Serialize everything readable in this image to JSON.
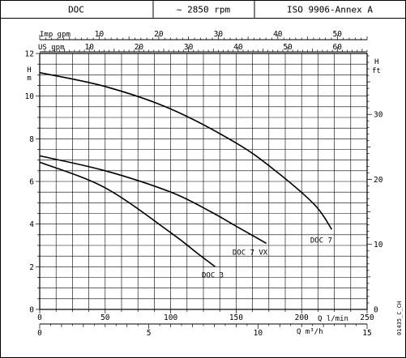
{
  "header": {
    "cells": [
      "DOC",
      "~ 2850 rpm",
      "ISO 9906-Annex A"
    ]
  },
  "footer_code": "01435_C_CH",
  "chart_data": {
    "type": "line",
    "title": "",
    "x_axis_bottom": {
      "label": "Q l/min",
      "range": [
        0,
        250
      ],
      "ticks": [
        0,
        50,
        100,
        150,
        200,
        250
      ],
      "tick_labels": [
        "0",
        "50",
        "100",
        "150",
        "200",
        "250"
      ]
    },
    "x_axis_bottom_m3h": {
      "label": "Q m³/h",
      "range": [
        0,
        15
      ],
      "ticks": [
        0,
        5,
        10,
        15
      ],
      "tick_labels": [
        "0",
        "5",
        "10",
        "15"
      ]
    },
    "x_axis_top_imp": {
      "label": "Imp gpm",
      "range": [
        0,
        55
      ],
      "ticks": [
        10,
        20,
        30,
        40,
        50
      ],
      "tick_labels": [
        "10",
        "20",
        "30",
        "40",
        "50"
      ]
    },
    "x_axis_top_us": {
      "label": "US gpm",
      "range": [
        0,
        66
      ],
      "ticks": [
        10,
        20,
        30,
        40,
        50,
        60
      ],
      "tick_labels": [
        "10",
        "20",
        "30",
        "40",
        "50",
        "60"
      ]
    },
    "y_axis_left": {
      "label_top": "H",
      "label_bottom": "m",
      "range": [
        0,
        12
      ],
      "ticks": [
        0,
        2,
        4,
        6,
        8,
        10,
        12
      ],
      "tick_labels": [
        "0",
        "2",
        "4",
        "6",
        "8",
        "10",
        "12"
      ]
    },
    "y_axis_right": {
      "label_top": "H",
      "label_bottom": "ft",
      "range": [
        0,
        39.37
      ],
      "ticks": [
        0,
        10,
        20,
        30
      ],
      "tick_labels": [
        "0",
        "10",
        "20",
        "30"
      ]
    },
    "grid": true,
    "series": [
      {
        "name": "DOC 7",
        "x": [
          0,
          50,
          100,
          150,
          180,
          210,
          223
        ],
        "y": [
          11.1,
          10.45,
          9.4,
          7.8,
          6.5,
          4.9,
          3.75
        ]
      },
      {
        "name": "DOC 7 VX",
        "x": [
          0,
          50,
          100,
          130,
          150,
          173
        ],
        "y": [
          7.2,
          6.5,
          5.5,
          4.6,
          3.9,
          3.1
        ]
      },
      {
        "name": "DOC 3",
        "x": [
          0,
          50,
          100,
          120,
          134
        ],
        "y": [
          6.9,
          5.7,
          3.6,
          2.65,
          2.0
        ]
      }
    ]
  }
}
